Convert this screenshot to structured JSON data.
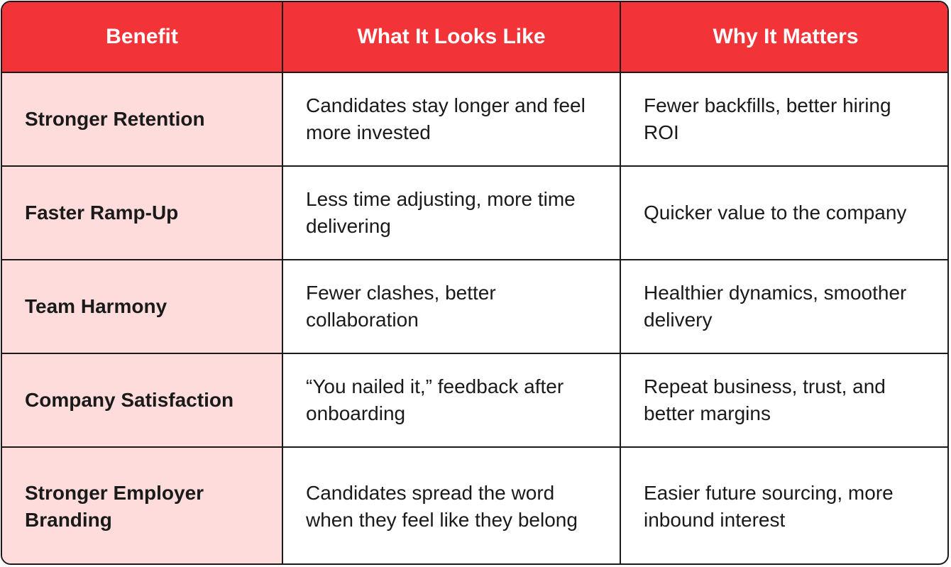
{
  "table": {
    "headers": [
      "Benefit",
      "What It Looks Like",
      "Why It Matters"
    ],
    "rows": [
      {
        "benefit": "Stronger Retention",
        "looks_like": "Candidates stay longer and feel more invested",
        "why": "Fewer backfills, better hiring ROI"
      },
      {
        "benefit": "Faster Ramp-Up",
        "looks_like": "Less time adjusting, more time delivering",
        "why": "Quicker value to the company"
      },
      {
        "benefit": "Team Harmony",
        "looks_like": "Fewer clashes, better collaboration",
        "why": "Healthier dynamics, smoother delivery"
      },
      {
        "benefit": "Company Satisfaction",
        "looks_like": "“You nailed it,” feedback after onboarding",
        "why": "Repeat business, trust, and better margins"
      },
      {
        "benefit": "Stronger Employer Branding",
        "looks_like": "Candidates spread the word when they feel like they belong",
        "why": "Easier future sourcing, more inbound interest"
      }
    ]
  },
  "colors": {
    "header_bg": "#f23338",
    "benefit_bg": "#ffdcdc",
    "border": "#1a1a1a"
  }
}
